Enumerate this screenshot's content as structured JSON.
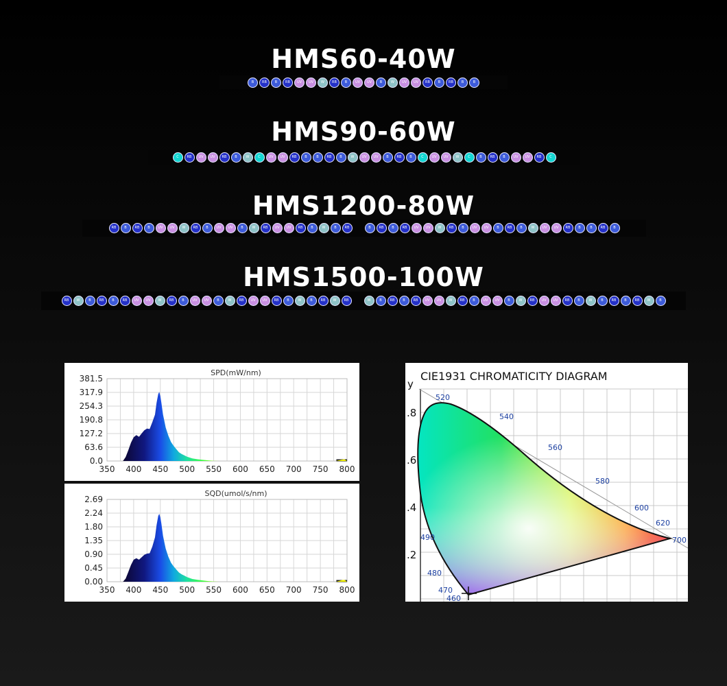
{
  "models": [
    {
      "title": "HMS60-40W",
      "leds": [
        "B",
        "RB",
        "B",
        "RB",
        "UV",
        "UV",
        "W",
        "RB",
        "B",
        "UV",
        "UV",
        "B",
        "W",
        "UV",
        "UV",
        "RB",
        "B",
        "RB",
        "B",
        "B"
      ]
    },
    {
      "title": "HMS90-60W",
      "leds": [
        "C",
        "RB",
        "UV",
        "UV",
        "RB",
        "B",
        "W",
        "C",
        "UV",
        "UV",
        "RB",
        "B",
        "B",
        "RB",
        "B",
        "W",
        "UV",
        "UV",
        "B",
        "RB",
        "B",
        "C",
        "UV",
        "UV",
        "W",
        "C",
        "B",
        "RB",
        "B",
        "UV",
        "UV",
        "RB",
        "C"
      ]
    },
    {
      "title": "HMS1200-80W",
      "leds": [
        "RB",
        "B",
        "RB",
        "B",
        "UV",
        "UV",
        "W",
        "RB",
        "B",
        "UV",
        "UV",
        "B",
        "W",
        "RB",
        "UV",
        "UV",
        "RB",
        "B",
        "W",
        "B",
        "RB",
        "|",
        "B",
        "RB",
        "B",
        "RB",
        "UV",
        "UV",
        "W",
        "RB",
        "B",
        "UV",
        "UV",
        "B",
        "RB",
        "B",
        "W",
        "UV",
        "UV",
        "RB",
        "B",
        "B",
        "RB",
        "B"
      ]
    },
    {
      "title": "HMS1500-100W",
      "leds": [
        "RB",
        "W",
        "B",
        "RB",
        "B",
        "RB",
        "UV",
        "UV",
        "W",
        "RB",
        "B",
        "UV",
        "UV",
        "B",
        "W",
        "RB",
        "UV",
        "UV",
        "RB",
        "B",
        "W",
        "B",
        "RB",
        "W",
        "RB",
        "|",
        "W",
        "B",
        "RB",
        "B",
        "RB",
        "UV",
        "UV",
        "W",
        "RB",
        "B",
        "UV",
        "UV",
        "B",
        "W",
        "RB",
        "UV",
        "UV",
        "RB",
        "B",
        "W",
        "B",
        "RB",
        "B",
        "RB",
        "W",
        "B"
      ]
    }
  ],
  "led_colors": {
    "B": "#3d5bd9",
    "RB": "#2431c8",
    "UV": "#c990e2",
    "W": "#8ec3c7",
    "C": "#14d6d2"
  },
  "led_label_text": {
    "B": "B",
    "RB": "RB",
    "UV": "UV",
    "W": "W",
    "C": "C"
  },
  "chart_data": [
    {
      "type": "area",
      "title": "SPD(mW/nm)",
      "xlabel": "",
      "ylabel": "",
      "xticks": [
        350,
        400,
        450,
        500,
        550,
        600,
        650,
        700,
        750,
        800
      ],
      "yticks": [
        "0.0",
        "63.6",
        "127.2",
        "190.8",
        "254.3",
        "317.9",
        "381.5"
      ],
      "xlim": [
        350,
        800
      ],
      "ylim": [
        0,
        381.5
      ],
      "grid": true,
      "x": [
        380,
        385,
        390,
        395,
        400,
        405,
        410,
        415,
        420,
        425,
        430,
        435,
        440,
        443,
        446,
        448,
        450,
        452,
        455,
        458,
        460,
        465,
        470,
        475,
        480,
        485,
        490,
        495,
        500,
        510,
        520,
        530,
        540,
        550,
        560,
        780,
        790,
        795,
        800
      ],
      "y": [
        0,
        18,
        50,
        85,
        110,
        120,
        112,
        128,
        142,
        150,
        148,
        180,
        215,
        270,
        310,
        320,
        300,
        270,
        215,
        180,
        155,
        118,
        88,
        70,
        55,
        40,
        32,
        26,
        20,
        12,
        8,
        5,
        3,
        1,
        0,
        0,
        6,
        8,
        0
      ]
    },
    {
      "type": "area",
      "title": "SQD(umol/s/nm)",
      "xlabel": "",
      "ylabel": "",
      "xticks": [
        350,
        400,
        450,
        500,
        550,
        600,
        650,
        700,
        750,
        800
      ],
      "yticks": [
        "0.00",
        "0.45",
        "0.90",
        "1.35",
        "1.80",
        "2.24",
        "2.69"
      ],
      "xlim": [
        350,
        800
      ],
      "ylim": [
        0,
        2.69
      ],
      "grid": true,
      "x": [
        380,
        385,
        390,
        395,
        400,
        405,
        410,
        415,
        420,
        425,
        430,
        435,
        440,
        443,
        446,
        448,
        450,
        452,
        455,
        458,
        460,
        465,
        470,
        475,
        480,
        485,
        490,
        495,
        500,
        510,
        520,
        530,
        540,
        550,
        560,
        780,
        790,
        795,
        800
      ],
      "y": [
        0,
        0.1,
        0.32,
        0.55,
        0.72,
        0.77,
        0.72,
        0.8,
        0.88,
        0.92,
        0.93,
        1.15,
        1.45,
        1.85,
        2.15,
        2.22,
        2.1,
        1.9,
        1.5,
        1.25,
        1.08,
        0.82,
        0.62,
        0.5,
        0.4,
        0.3,
        0.24,
        0.2,
        0.15,
        0.09,
        0.06,
        0.04,
        0.02,
        0.01,
        0,
        0,
        0.05,
        0.06,
        0
      ]
    },
    {
      "type": "diagram",
      "title": "CIE1931 CHROMATICITY DIAGRAM",
      "ylabel": "y",
      "yticks": [
        ".8",
        ".6",
        ".4",
        ".2"
      ],
      "wavelength_labels": [
        "520",
        "540",
        "560",
        "580",
        "600",
        "620",
        "700",
        "490",
        "480",
        "470",
        "460"
      ]
    }
  ]
}
